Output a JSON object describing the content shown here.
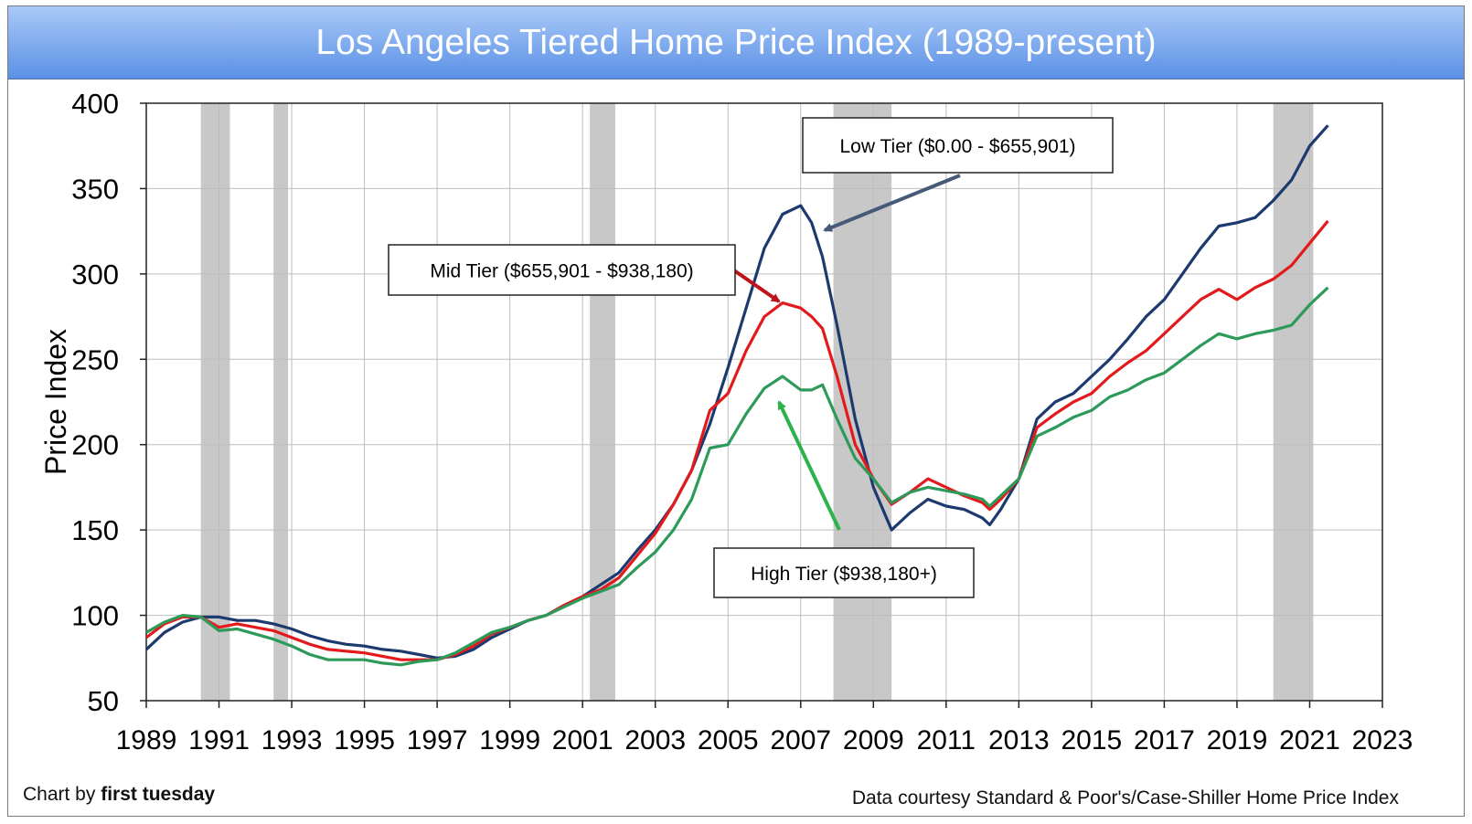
{
  "header": {
    "title": "Los Angeles Tiered Home Price Index (1989-present)"
  },
  "footer": {
    "credit_prefix": "Chart by",
    "credit_brand": "first tuesday",
    "source": "Data courtesy Standard & Poor's/Case-Shiller Home Price Index"
  },
  "chart_data": {
    "type": "line",
    "title": "Los Angeles Tiered Home Price Index (1989-present)",
    "ylabel": "Price Index",
    "xlabel": "",
    "xlim": [
      1989,
      2023
    ],
    "ylim": [
      50,
      400
    ],
    "yticks": [
      50,
      100,
      150,
      200,
      250,
      300,
      350,
      400
    ],
    "xticks": [
      1989,
      1991,
      1993,
      1995,
      1997,
      1999,
      2001,
      2003,
      2005,
      2007,
      2009,
      2011,
      2013,
      2015,
      2017,
      2019,
      2021,
      2023
    ],
    "grid": true,
    "recession_bands": [
      [
        1990.5,
        1991.3
      ],
      [
        1992.5,
        1992.9
      ],
      [
        2001.2,
        2001.9
      ],
      [
        2007.9,
        2009.5
      ],
      [
        2020.0,
        2021.1
      ]
    ],
    "series": [
      {
        "name": "Low Tier ($0.00 - $655,901)",
        "color": "#1c3a6e",
        "points": [
          [
            1989.0,
            80
          ],
          [
            1989.5,
            90
          ],
          [
            1990.0,
            96
          ],
          [
            1990.5,
            99
          ],
          [
            1991.0,
            99
          ],
          [
            1991.5,
            97
          ],
          [
            1992.0,
            97
          ],
          [
            1992.5,
            95
          ],
          [
            1993.0,
            92
          ],
          [
            1993.5,
            88
          ],
          [
            1994.0,
            85
          ],
          [
            1994.5,
            83
          ],
          [
            1995.0,
            82
          ],
          [
            1995.5,
            80
          ],
          [
            1996.0,
            79
          ],
          [
            1996.5,
            77
          ],
          [
            1997.0,
            75
          ],
          [
            1997.5,
            76
          ],
          [
            1998.0,
            80
          ],
          [
            1998.5,
            87
          ],
          [
            1999.0,
            92
          ],
          [
            1999.5,
            97
          ],
          [
            2000.0,
            100
          ],
          [
            2000.5,
            106
          ],
          [
            2001.0,
            111
          ],
          [
            2001.5,
            118
          ],
          [
            2002.0,
            125
          ],
          [
            2002.5,
            138
          ],
          [
            2003.0,
            150
          ],
          [
            2003.5,
            165
          ],
          [
            2004.0,
            185
          ],
          [
            2004.5,
            212
          ],
          [
            2005.0,
            245
          ],
          [
            2005.5,
            280
          ],
          [
            2006.0,
            315
          ],
          [
            2006.5,
            335
          ],
          [
            2007.0,
            340
          ],
          [
            2007.3,
            330
          ],
          [
            2007.6,
            310
          ],
          [
            2008.0,
            270
          ],
          [
            2008.5,
            215
          ],
          [
            2009.0,
            175
          ],
          [
            2009.5,
            150
          ],
          [
            2010.0,
            160
          ],
          [
            2010.5,
            168
          ],
          [
            2011.0,
            164
          ],
          [
            2011.5,
            162
          ],
          [
            2012.0,
            157
          ],
          [
            2012.2,
            153
          ],
          [
            2012.5,
            162
          ],
          [
            2013.0,
            180
          ],
          [
            2013.5,
            215
          ],
          [
            2014.0,
            225
          ],
          [
            2014.5,
            230
          ],
          [
            2015.0,
            240
          ],
          [
            2015.5,
            250
          ],
          [
            2016.0,
            262
          ],
          [
            2016.5,
            275
          ],
          [
            2017.0,
            285
          ],
          [
            2017.5,
            300
          ],
          [
            2018.0,
            315
          ],
          [
            2018.5,
            328
          ],
          [
            2019.0,
            330
          ],
          [
            2019.5,
            333
          ],
          [
            2020.0,
            343
          ],
          [
            2020.5,
            355
          ],
          [
            2021.0,
            375
          ],
          [
            2021.5,
            387
          ]
        ]
      },
      {
        "name": "Mid Tier ($655,901 - $938,180)",
        "color": "#e31a1c",
        "points": [
          [
            1989.0,
            87
          ],
          [
            1989.5,
            95
          ],
          [
            1990.0,
            99
          ],
          [
            1990.5,
            99
          ],
          [
            1991.0,
            93
          ],
          [
            1991.5,
            95
          ],
          [
            1992.0,
            93
          ],
          [
            1992.5,
            91
          ],
          [
            1993.0,
            87
          ],
          [
            1993.5,
            83
          ],
          [
            1994.0,
            80
          ],
          [
            1994.5,
            79
          ],
          [
            1995.0,
            78
          ],
          [
            1995.5,
            76
          ],
          [
            1996.0,
            74
          ],
          [
            1996.5,
            74
          ],
          [
            1997.0,
            74
          ],
          [
            1997.5,
            77
          ],
          [
            1998.0,
            82
          ],
          [
            1998.5,
            89
          ],
          [
            1999.0,
            93
          ],
          [
            1999.5,
            97
          ],
          [
            2000.0,
            100
          ],
          [
            2000.5,
            106
          ],
          [
            2001.0,
            111
          ],
          [
            2001.5,
            115
          ],
          [
            2002.0,
            122
          ],
          [
            2002.5,
            135
          ],
          [
            2003.0,
            148
          ],
          [
            2003.5,
            165
          ],
          [
            2004.0,
            185
          ],
          [
            2004.5,
            220
          ],
          [
            2005.0,
            230
          ],
          [
            2005.5,
            255
          ],
          [
            2006.0,
            275
          ],
          [
            2006.5,
            283
          ],
          [
            2007.0,
            280
          ],
          [
            2007.3,
            275
          ],
          [
            2007.6,
            268
          ],
          [
            2008.0,
            240
          ],
          [
            2008.5,
            200
          ],
          [
            2009.0,
            180
          ],
          [
            2009.5,
            165
          ],
          [
            2010.0,
            172
          ],
          [
            2010.5,
            180
          ],
          [
            2011.0,
            175
          ],
          [
            2011.5,
            170
          ],
          [
            2012.0,
            166
          ],
          [
            2012.2,
            162
          ],
          [
            2012.5,
            168
          ],
          [
            2013.0,
            180
          ],
          [
            2013.5,
            210
          ],
          [
            2014.0,
            218
          ],
          [
            2014.5,
            225
          ],
          [
            2015.0,
            230
          ],
          [
            2015.5,
            240
          ],
          [
            2016.0,
            248
          ],
          [
            2016.5,
            255
          ],
          [
            2017.0,
            265
          ],
          [
            2017.5,
            275
          ],
          [
            2018.0,
            285
          ],
          [
            2018.5,
            291
          ],
          [
            2019.0,
            285
          ],
          [
            2019.5,
            292
          ],
          [
            2020.0,
            297
          ],
          [
            2020.5,
            305
          ],
          [
            2021.0,
            318
          ],
          [
            2021.5,
            331
          ]
        ]
      },
      {
        "name": "High Tier ($938,180+)",
        "color": "#2e9a5a",
        "points": [
          [
            1989.0,
            90
          ],
          [
            1989.5,
            96
          ],
          [
            1990.0,
            100
          ],
          [
            1990.5,
            99
          ],
          [
            1991.0,
            91
          ],
          [
            1991.5,
            92
          ],
          [
            1992.0,
            89
          ],
          [
            1992.5,
            86
          ],
          [
            1993.0,
            82
          ],
          [
            1993.5,
            77
          ],
          [
            1994.0,
            74
          ],
          [
            1994.5,
            74
          ],
          [
            1995.0,
            74
          ],
          [
            1995.5,
            72
          ],
          [
            1996.0,
            71
          ],
          [
            1996.5,
            73
          ],
          [
            1997.0,
            74
          ],
          [
            1997.5,
            78
          ],
          [
            1998.0,
            84
          ],
          [
            1998.5,
            90
          ],
          [
            1999.0,
            93
          ],
          [
            1999.5,
            97
          ],
          [
            2000.0,
            100
          ],
          [
            2000.5,
            105
          ],
          [
            2001.0,
            110
          ],
          [
            2001.5,
            114
          ],
          [
            2002.0,
            118
          ],
          [
            2002.5,
            128
          ],
          [
            2003.0,
            137
          ],
          [
            2003.5,
            150
          ],
          [
            2004.0,
            168
          ],
          [
            2004.5,
            198
          ],
          [
            2005.0,
            200
          ],
          [
            2005.5,
            218
          ],
          [
            2006.0,
            233
          ],
          [
            2006.5,
            240
          ],
          [
            2007.0,
            232
          ],
          [
            2007.3,
            232
          ],
          [
            2007.6,
            235
          ],
          [
            2008.0,
            215
          ],
          [
            2008.5,
            192
          ],
          [
            2009.0,
            180
          ],
          [
            2009.5,
            166
          ],
          [
            2010.0,
            172
          ],
          [
            2010.5,
            175
          ],
          [
            2011.0,
            173
          ],
          [
            2011.5,
            171
          ],
          [
            2012.0,
            168
          ],
          [
            2012.2,
            164
          ],
          [
            2012.5,
            170
          ],
          [
            2013.0,
            180
          ],
          [
            2013.5,
            205
          ],
          [
            2014.0,
            210
          ],
          [
            2014.5,
            216
          ],
          [
            2015.0,
            220
          ],
          [
            2015.5,
            228
          ],
          [
            2016.0,
            232
          ],
          [
            2016.5,
            238
          ],
          [
            2017.0,
            242
          ],
          [
            2017.5,
            250
          ],
          [
            2018.0,
            258
          ],
          [
            2018.5,
            265
          ],
          [
            2019.0,
            262
          ],
          [
            2019.5,
            265
          ],
          [
            2020.0,
            267
          ],
          [
            2020.5,
            270
          ],
          [
            2021.0,
            282
          ],
          [
            2021.5,
            292
          ]
        ]
      }
    ],
    "annotations": [
      {
        "text": "Low Tier ($0.00 - $655,901)",
        "series": 0,
        "arrow_color": "#465a78"
      },
      {
        "text": "Mid Tier ($655,901 - $938,180)",
        "series": 1,
        "arrow_color": "#c0121a"
      },
      {
        "text": "High Tier ($938,180+)",
        "series": 2,
        "arrow_color": "#2db34a"
      }
    ]
  }
}
